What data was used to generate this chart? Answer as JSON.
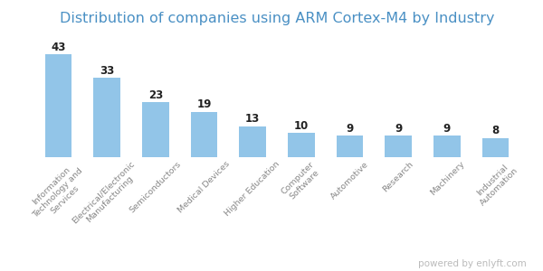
{
  "title": "Distribution of companies using ARM Cortex-M4 by Industry",
  "categories": [
    "Information\nTechnology and\nServices",
    "Electrical/Electronic\nManufacturing",
    "Semiconductors",
    "Medical Devices",
    "Higher Education",
    "Computer\nSoftware",
    "Automotive",
    "Research",
    "Machinery",
    "Industrial\nAutomation"
  ],
  "values": [
    43,
    33,
    23,
    19,
    13,
    10,
    9,
    9,
    9,
    8
  ],
  "bar_color": "#92c5e8",
  "title_color": "#4a90c4",
  "label_color": "#222222",
  "tick_label_color": "#888888",
  "background_color": "#ffffff",
  "watermark": "powered by enlyft.com",
  "watermark_color": "#bbbbbb",
  "bar_width": 0.55,
  "ylim": [
    0,
    52
  ],
  "title_fontsize": 11.5,
  "value_fontsize": 8.5,
  "tick_fontsize": 6.8
}
